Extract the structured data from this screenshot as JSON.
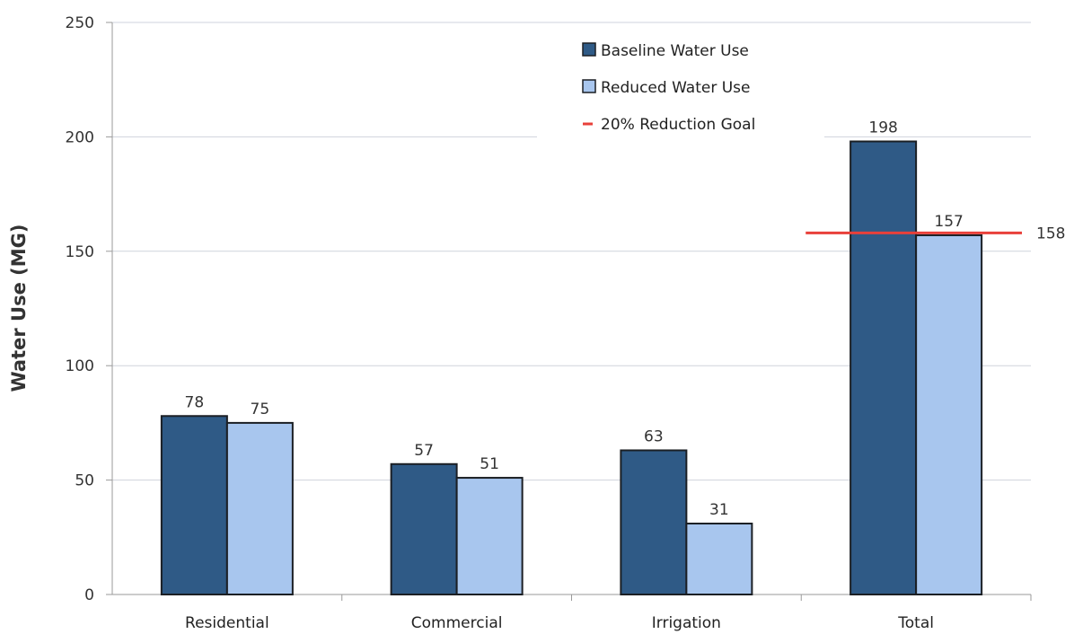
{
  "chart_data": {
    "type": "bar",
    "title": "",
    "xlabel": "",
    "ylabel": "Water Use (MG)",
    "ylim": [
      0,
      250
    ],
    "yticks": [
      0,
      50,
      100,
      150,
      200,
      250
    ],
    "grid": true,
    "legend_position": "top-right",
    "categories": [
      "Residential",
      "Commercial",
      "Irrigation",
      "Total"
    ],
    "series": [
      {
        "name": "Baseline Water Use",
        "color": "#2f5a86",
        "values": [
          78,
          57,
          63,
          198
        ]
      },
      {
        "name": "Reduced Water Use",
        "color": "#a8c6ee",
        "values": [
          75,
          51,
          31,
          157
        ]
      }
    ],
    "reference_line": {
      "name": "20% Reduction Goal",
      "value": 158,
      "label": "158",
      "color": "#e8403a"
    }
  }
}
